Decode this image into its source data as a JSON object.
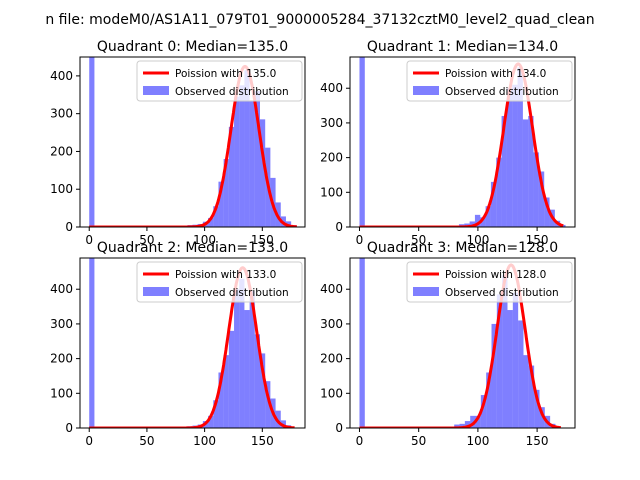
{
  "figure": {
    "suptitle": "n file: modeM0/AS1A11_079T01_9000005284_37132cztM0_level2_quad_clean"
  },
  "colors": {
    "hist": "#0000ff",
    "hist_opacity": 0.5,
    "poisson": "#ff0000",
    "axes": "#000000",
    "background": "#ffffff"
  },
  "chart_data": [
    {
      "type": "bar",
      "title": "Quadrant 0: Median=135.0",
      "xlabel": "",
      "ylabel": "",
      "xlim": [
        -8,
        187
      ],
      "ylim": [
        0,
        450
      ],
      "xticks": [
        "0",
        "50",
        "100",
        "150"
      ],
      "yticks": [
        "0",
        "100",
        "200",
        "300",
        "400"
      ],
      "legend": {
        "placement": "top-right",
        "entries": [
          "Poission with 135.0",
          "Observed distribution"
        ]
      },
      "median": 135.0,
      "histogram": {
        "bin_width": 4.5,
        "bins": [
          {
            "x0": 0,
            "count": 450
          },
          {
            "x0": 85,
            "count": 5
          },
          {
            "x0": 89.5,
            "count": 6
          },
          {
            "x0": 94,
            "count": 8
          },
          {
            "x0": 98.5,
            "count": 14
          },
          {
            "x0": 103,
            "count": 24
          },
          {
            "x0": 107.5,
            "count": 55
          },
          {
            "x0": 112,
            "count": 120
          },
          {
            "x0": 116.5,
            "count": 180
          },
          {
            "x0": 121,
            "count": 265
          },
          {
            "x0": 125.5,
            "count": 345
          },
          {
            "x0": 130,
            "count": 375
          },
          {
            "x0": 134.5,
            "count": 415
          },
          {
            "x0": 139,
            "count": 335
          },
          {
            "x0": 143.5,
            "count": 360
          },
          {
            "x0": 148,
            "count": 285
          },
          {
            "x0": 152.5,
            "count": 210
          },
          {
            "x0": 157,
            "count": 130
          },
          {
            "x0": 161.5,
            "count": 65
          },
          {
            "x0": 166,
            "count": 28
          },
          {
            "x0": 170.5,
            "count": 15
          },
          {
            "x0": 175,
            "count": 5
          }
        ]
      },
      "poisson_curve": {
        "x_range": [
          0,
          180
        ],
        "peak": 425
      }
    },
    {
      "type": "bar",
      "title": "Quadrant 1: Median=134.0",
      "xlabel": "",
      "ylabel": "",
      "xlim": [
        -8,
        182
      ],
      "ylim": [
        0,
        490
      ],
      "xticks": [
        "0",
        "50",
        "100",
        "150"
      ],
      "yticks": [
        "0",
        "100",
        "200",
        "300",
        "400"
      ],
      "legend": {
        "placement": "top-right",
        "entries": [
          "Poission with 134.0",
          "Observed distribution"
        ]
      },
      "median": 134.0,
      "histogram": {
        "bin_width": 4.5,
        "bins": [
          {
            "x0": 0,
            "count": 490
          },
          {
            "x0": 84,
            "count": 8
          },
          {
            "x0": 88.5,
            "count": 10
          },
          {
            "x0": 93,
            "count": 16
          },
          {
            "x0": 97.5,
            "count": 35
          },
          {
            "x0": 102,
            "count": 28
          },
          {
            "x0": 106.5,
            "count": 60
          },
          {
            "x0": 111,
            "count": 130
          },
          {
            "x0": 115.5,
            "count": 200
          },
          {
            "x0": 120,
            "count": 320
          },
          {
            "x0": 124.5,
            "count": 400
          },
          {
            "x0": 129,
            "count": 410
          },
          {
            "x0": 133.5,
            "count": 460
          },
          {
            "x0": 138,
            "count": 310
          },
          {
            "x0": 142.5,
            "count": 320
          },
          {
            "x0": 147,
            "count": 215
          },
          {
            "x0": 151.5,
            "count": 160
          },
          {
            "x0": 156,
            "count": 85
          },
          {
            "x0": 160.5,
            "count": 50
          },
          {
            "x0": 165,
            "count": 18
          },
          {
            "x0": 169.5,
            "count": 6
          }
        ]
      },
      "poisson_curve": {
        "x_range": [
          0,
          172
        ],
        "peak": 470
      }
    },
    {
      "type": "bar",
      "title": "Quadrant 2: Median=133.0",
      "xlabel": "",
      "ylabel": "",
      "xlim": [
        -8,
        187
      ],
      "ylim": [
        0,
        490
      ],
      "xticks": [
        "0",
        "50",
        "100",
        "150"
      ],
      "yticks": [
        "0",
        "100",
        "200",
        "300",
        "400"
      ],
      "legend": {
        "placement": "top-right",
        "entries": [
          "Poission with 133.0",
          "Observed distribution"
        ]
      },
      "median": 133.0,
      "histogram": {
        "bin_width": 4.5,
        "bins": [
          {
            "x0": 0,
            "count": 490
          },
          {
            "x0": 85,
            "count": 5
          },
          {
            "x0": 89.5,
            "count": 7
          },
          {
            "x0": 94,
            "count": 10
          },
          {
            "x0": 98.5,
            "count": 20
          },
          {
            "x0": 103,
            "count": 35
          },
          {
            "x0": 107.5,
            "count": 80
          },
          {
            "x0": 112,
            "count": 160
          },
          {
            "x0": 116.5,
            "count": 210
          },
          {
            "x0": 121,
            "count": 280
          },
          {
            "x0": 125.5,
            "count": 400
          },
          {
            "x0": 130,
            "count": 430
          },
          {
            "x0": 134.5,
            "count": 340
          },
          {
            "x0": 139,
            "count": 395
          },
          {
            "x0": 143.5,
            "count": 270
          },
          {
            "x0": 148,
            "count": 215
          },
          {
            "x0": 152.5,
            "count": 135
          },
          {
            "x0": 157,
            "count": 85
          },
          {
            "x0": 161.5,
            "count": 50
          },
          {
            "x0": 166,
            "count": 22
          },
          {
            "x0": 170.5,
            "count": 8
          }
        ]
      },
      "poisson_curve": {
        "x_range": [
          0,
          178
        ],
        "peak": 462
      }
    },
    {
      "type": "bar",
      "title": "Quadrant 3: Median=128.0",
      "xlabel": "",
      "ylabel": "",
      "xlim": [
        -8,
        182
      ],
      "ylim": [
        0,
        490
      ],
      "xticks": [
        "0",
        "50",
        "100",
        "150"
      ],
      "yticks": [
        "0",
        "100",
        "200",
        "300",
        "400"
      ],
      "legend": {
        "placement": "top-right",
        "entries": [
          "Poission with 128.0",
          "Observed distribution"
        ]
      },
      "median": 128.0,
      "histogram": {
        "bin_width": 4.5,
        "bins": [
          {
            "x0": 0,
            "count": 490
          },
          {
            "x0": 80,
            "count": 10
          },
          {
            "x0": 84.5,
            "count": 12
          },
          {
            "x0": 89,
            "count": 20
          },
          {
            "x0": 93.5,
            "count": 35
          },
          {
            "x0": 98,
            "count": 35
          },
          {
            "x0": 102.5,
            "count": 95
          },
          {
            "x0": 107,
            "count": 160
          },
          {
            "x0": 111.5,
            "count": 300
          },
          {
            "x0": 116,
            "count": 385
          },
          {
            "x0": 120.5,
            "count": 440
          },
          {
            "x0": 125,
            "count": 340
          },
          {
            "x0": 129.5,
            "count": 390
          },
          {
            "x0": 134,
            "count": 310
          },
          {
            "x0": 138.5,
            "count": 210
          },
          {
            "x0": 143,
            "count": 180
          },
          {
            "x0": 147.5,
            "count": 110
          },
          {
            "x0": 152,
            "count": 60
          },
          {
            "x0": 156.5,
            "count": 35
          },
          {
            "x0": 161,
            "count": 12
          }
        ]
      },
      "poisson_curve": {
        "x_range": [
          0,
          170
        ],
        "peak": 470
      }
    }
  ]
}
